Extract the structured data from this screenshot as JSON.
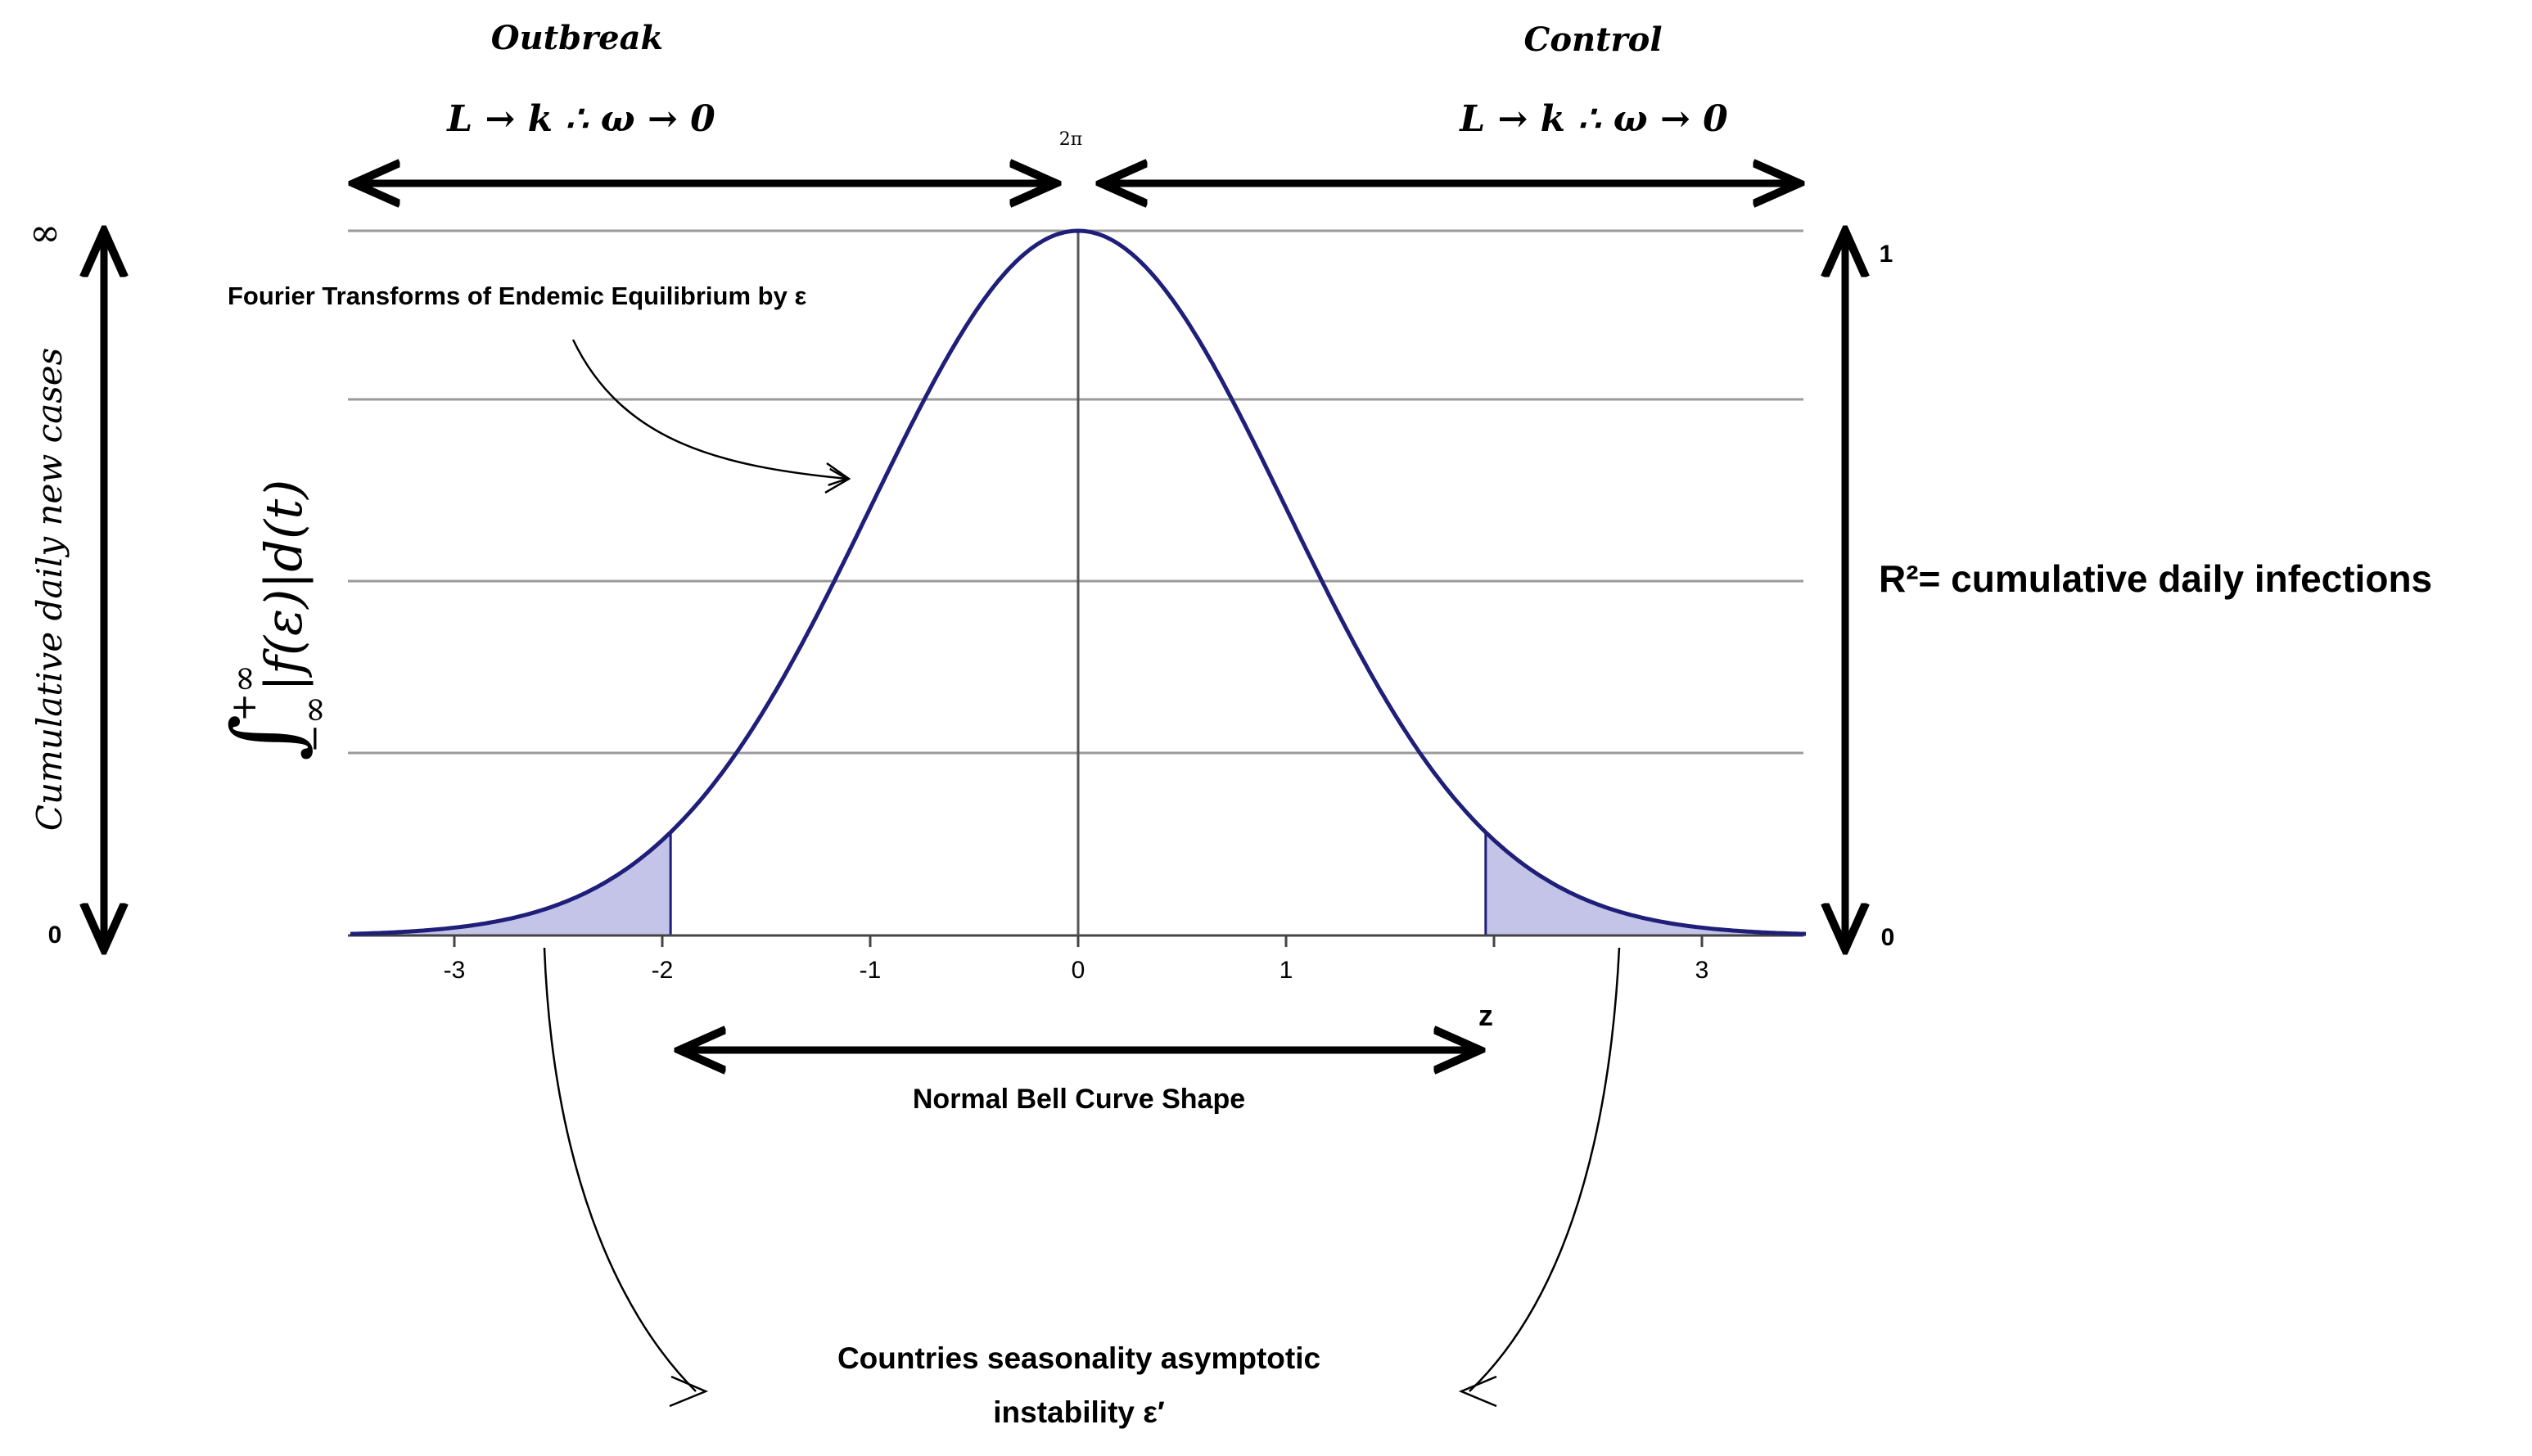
{
  "labels": {
    "outbreak": "Outbreak",
    "control": "Control",
    "left_limit": "L → k ∴ ω → 0",
    "right_limit": "L → k ∴ ω → 0",
    "two_pi": "2π",
    "fourier": "Fourier Transforms of Endemic Equilibrium by ε",
    "y_axis": "Cumulative daily new cases",
    "integral_upper": "+∞",
    "integral_lower": "−∞",
    "integral_body": "|f(ε)|d(t)",
    "integral_sign": "∫",
    "left_top": "∞",
    "left_bottom": "0",
    "right_top": "1",
    "right_bottom": "0",
    "r_squared": "R²= cumulative daily infections",
    "z_label": "z",
    "normal_bell": "Normal Bell Curve Shape",
    "seasonality_line1": "Countries seasonality asymptotic",
    "seasonality_line2": "instability ε′"
  },
  "colors": {
    "curve": "#1f1f7a",
    "tail_fill": "#c4c4e8",
    "grid": "#9a9a9a",
    "arrow": "#000000"
  },
  "chart_data": {
    "type": "area",
    "x_ticks": [
      -3,
      -2,
      -1,
      0,
      1,
      2,
      3
    ],
    "x_ticklabels": [
      "-3",
      "-2",
      "-1",
      "0",
      "1",
      "",
      "3"
    ],
    "xlim": [
      -3.5,
      3.5
    ],
    "curve": "standard normal density",
    "mean": 0,
    "sd": 1,
    "shaded_tails": [
      [
        -3.5,
        -1.96
      ],
      [
        1.96,
        3.5
      ]
    ],
    "horizontal_gridlines": 4,
    "grid": true
  }
}
